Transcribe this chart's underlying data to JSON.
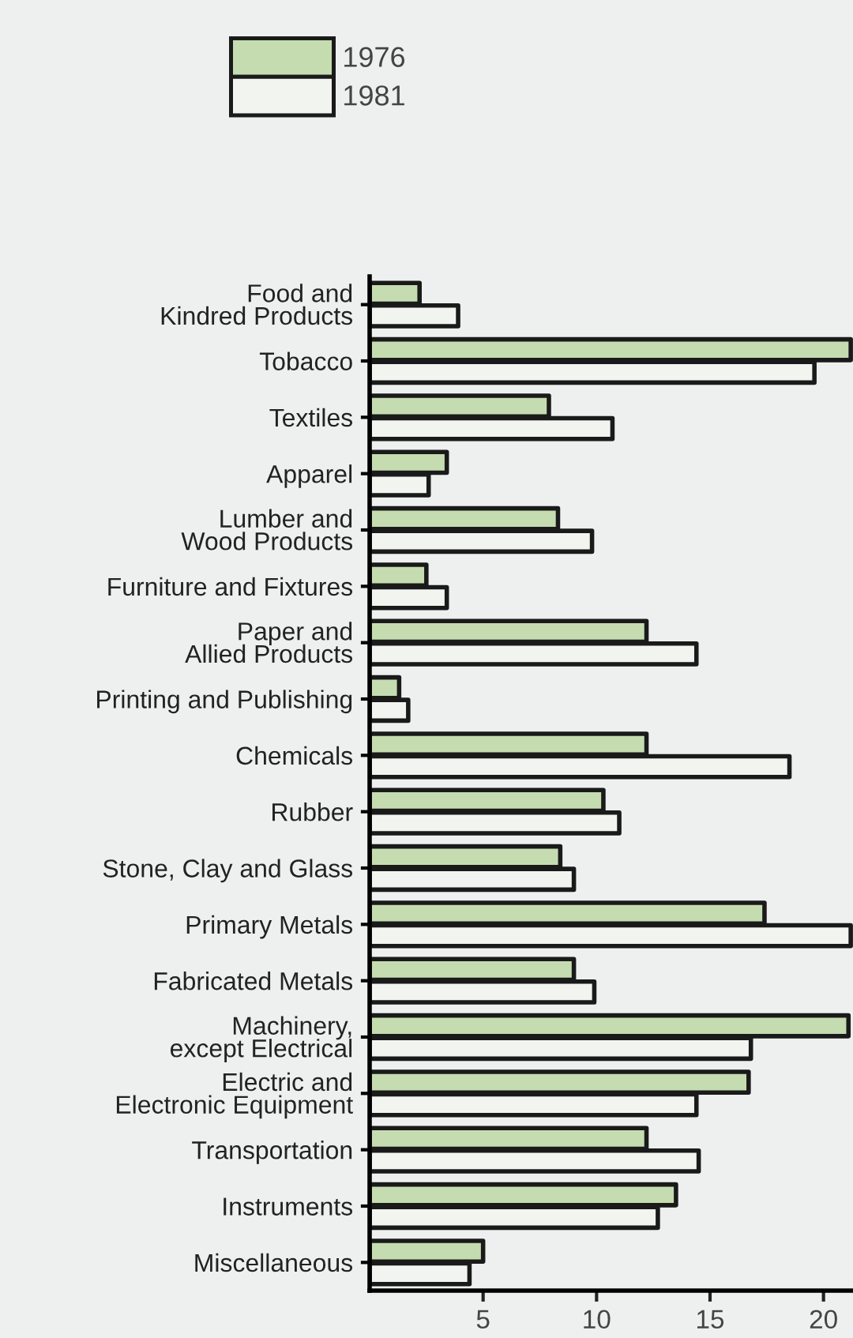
{
  "chart_data": {
    "type": "bar",
    "orientation": "horizontal",
    "categories": [
      "Food and\nKindred Products",
      "Tobacco",
      "Textiles",
      "Apparel",
      "Lumber and\nWood Products",
      "Furniture and Fixtures",
      "Paper and\nAllied Products",
      "Printing and Publishing",
      "Chemicals",
      "Rubber",
      "Stone, Clay and Glass",
      "Primary Metals",
      "Fabricated Metals",
      "Machinery,\nexcept Electrical",
      "Electric and\nElectronic Equipment",
      "Transportation",
      "Instruments",
      "Miscellaneous"
    ],
    "series": [
      {
        "name": "1976",
        "color": "#c5dcb0",
        "values": [
          2.2,
          21.2,
          7.9,
          3.4,
          8.3,
          2.5,
          12.2,
          1.3,
          12.2,
          10.3,
          8.4,
          17.4,
          9.0,
          21.1,
          16.7,
          12.2,
          13.5,
          5.0
        ]
      },
      {
        "name": "1981",
        "color": "#f2f4f0",
        "values": [
          3.9,
          19.6,
          10.7,
          2.6,
          9.8,
          3.4,
          14.4,
          1.7,
          18.5,
          11.0,
          9.0,
          21.2,
          9.9,
          16.8,
          14.4,
          14.5,
          12.7,
          4.4
        ]
      }
    ],
    "xlim": [
      0,
      21.3
    ],
    "xticks": [
      5,
      10,
      15,
      20
    ],
    "grid": false,
    "legend": "top"
  }
}
